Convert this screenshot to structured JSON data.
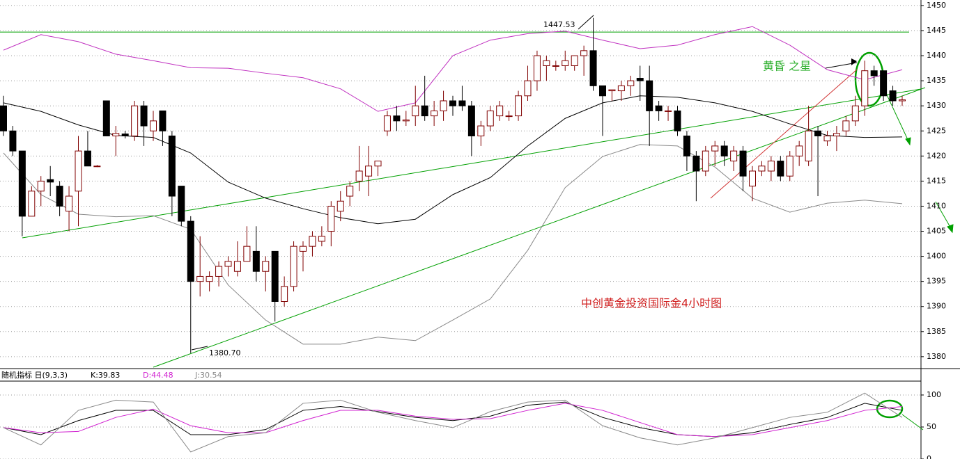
{
  "chart_data": [
    {
      "type": "candlestick",
      "open": [
        1430,
        1425,
        1421,
        1408,
        1413,
        1415.3,
        1414,
        1409,
        1413,
        1421,
        1418,
        1431,
        1424,
        1424.4,
        1424,
        1430,
        1425,
        1429,
        1424,
        1414,
        1407,
        1395,
        1395,
        1396,
        1398,
        1397,
        1399,
        1401,
        1397,
        1401,
        1391,
        1394,
        1401,
        1402,
        1403,
        1405,
        1409,
        1412,
        1415,
        1416,
        1418,
        1425,
        1428,
        1427,
        1428,
        1430,
        1428,
        1429,
        1431,
        1431,
        1430,
        1424,
        1426,
        1428,
        1428,
        1428,
        1432,
        1435,
        1438,
        1438,
        1438,
        1438,
        1440,
        1441,
        1434,
        1433,
        1433,
        1434,
        1435.5,
        1435,
        1430,
        1429,
        1429,
        1424,
        1420,
        1417,
        1421,
        1422,
        1419,
        1421,
        1414,
        1417,
        1417,
        1419,
        1416,
        1420,
        1419,
        1425,
        1423,
        1424,
        1425,
        1427,
        1430,
        1437,
        1437,
        1433,
        1431
      ],
      "high": [
        1432,
        1426,
        1421,
        1414,
        1416,
        1418,
        1415,
        1414,
        1424,
        1425,
        1418.2,
        1431,
        1426,
        1425,
        1431,
        1431,
        1429,
        1429,
        1425,
        1414,
        1408,
        1404,
        1397,
        1399,
        1400,
        1403,
        1406,
        1406,
        1400,
        1401,
        1396,
        1403,
        1403,
        1405,
        1406,
        1411,
        1413,
        1415,
        1422,
        1422,
        1419,
        1429,
        1430,
        1429,
        1434,
        1436,
        1431,
        1433,
        1432,
        1434,
        1431,
        1427,
        1430,
        1431,
        1429,
        1433,
        1438,
        1441,
        1440,
        1439,
        1441,
        1440,
        1442,
        1447.53,
        1434,
        1433,
        1435,
        1436,
        1438,
        1438,
        1431,
        1430,
        1430,
        1425,
        1421,
        1422,
        1423,
        1423,
        1422,
        1422,
        1418,
        1419,
        1420,
        1420,
        1421,
        1423,
        1430,
        1426,
        1425,
        1426,
        1428,
        1432,
        1439,
        1438,
        1437,
        1434,
        1432
      ],
      "low": [
        1424,
        1420,
        1404,
        1408,
        1410,
        1412,
        1408,
        1405,
        1406,
        1418,
        1417.8,
        1424,
        1420,
        1423.5,
        1423,
        1422,
        1423,
        1422,
        1408,
        1406,
        1380.7,
        1392,
        1393,
        1394,
        1396,
        1396,
        1399,
        1395,
        1393,
        1387,
        1390,
        1393,
        1397,
        1400,
        1402,
        1402,
        1407,
        1410,
        1413,
        1412,
        1416,
        1424,
        1425,
        1426,
        1426,
        1427,
        1426,
        1427,
        1428,
        1429,
        1420,
        1422,
        1425,
        1427,
        1427,
        1427,
        1431,
        1433,
        1435,
        1437,
        1437,
        1437,
        1436,
        1433,
        1424,
        1431,
        1431,
        1432,
        1431,
        1422,
        1427,
        1427,
        1424,
        1417,
        1411,
        1416,
        1418,
        1418,
        1417,
        1413,
        1411,
        1416,
        1415,
        1415,
        1415,
        1418,
        1418,
        1412,
        1422,
        1421,
        1424,
        1426,
        1428,
        1434,
        1431,
        1430,
        1430
      ],
      "close": [
        1425,
        1421,
        1408,
        1413,
        1415,
        1414.8,
        1410,
        1412,
        1421,
        1418,
        1418,
        1424,
        1424.5,
        1424,
        1430,
        1426,
        1427,
        1425,
        1412,
        1407,
        1395,
        1396,
        1396,
        1398,
        1399,
        1399,
        1402,
        1397,
        1399,
        1391,
        1394,
        1402,
        1402,
        1404,
        1404,
        1410,
        1411,
        1414,
        1417,
        1418,
        1419,
        1428,
        1427,
        1427.2,
        1430,
        1428,
        1429,
        1431,
        1430,
        1430,
        1424,
        1426,
        1429,
        1430,
        1428,
        1432,
        1435,
        1440,
        1439,
        1438,
        1439,
        1440,
        1441,
        1434,
        1432,
        1433.2,
        1434,
        1435,
        1435,
        1429,
        1429,
        1429,
        1425,
        1420,
        1417,
        1421,
        1422,
        1420,
        1421,
        1416,
        1417,
        1418,
        1419,
        1416,
        1420,
        1422,
        1425,
        1424,
        1424,
        1424.5,
        1427,
        1430,
        1437,
        1436,
        1432,
        1431,
        1431.2
      ],
      "up_color": "#800000",
      "down_color": "#000000",
      "bands": [
        {
          "color": "#c030c0",
          "x": [
            0,
            4,
            8,
            12,
            16,
            20,
            24,
            28,
            32,
            36,
            40,
            44,
            48,
            52,
            56,
            60,
            64,
            68,
            72,
            76,
            80,
            84,
            88,
            92,
            96
          ],
          "values": [
            1441.1,
            1444.2,
            1442.8,
            1440.3,
            1439.0,
            1437.6,
            1437.5,
            1436.5,
            1435.6,
            1433.4,
            1428.9,
            1430.6,
            1440.0,
            1443.1,
            1444.4,
            1444.9,
            1443.1,
            1441.4,
            1442.1,
            1444.2,
            1445.8,
            1442.1,
            1437.2,
            1435.2,
            1437.2
          ]
        },
        {
          "color": "#000000",
          "x": [
            0,
            4,
            8,
            12,
            16,
            20,
            24,
            28,
            32,
            36,
            40,
            44,
            48,
            52,
            56,
            60,
            64,
            68,
            72,
            76,
            80,
            84,
            88,
            92,
            96
          ],
          "values": [
            1430.6,
            1428.9,
            1426.2,
            1424.1,
            1423.7,
            1420.6,
            1414.8,
            1411.6,
            1409.5,
            1407.7,
            1406.5,
            1407.4,
            1412.3,
            1415.7,
            1422.0,
            1427.5,
            1430.6,
            1432.0,
            1431.7,
            1430.6,
            1428.9,
            1426.4,
            1424.1,
            1423.7,
            1423.8
          ]
        },
        {
          "color": "#888888",
          "x": [
            0,
            4,
            8,
            12,
            16,
            20,
            24,
            28,
            32,
            36,
            40,
            44,
            48,
            52,
            56,
            60,
            64,
            68,
            72,
            76,
            80,
            84,
            88,
            92,
            96
          ],
          "values": [
            1420.6,
            1412.3,
            1408.4,
            1407.9,
            1408.1,
            1405.4,
            1394.3,
            1387.3,
            1382.5,
            1382.5,
            1383.9,
            1383.2,
            1387.3,
            1391.5,
            1401.2,
            1413.7,
            1419.9,
            1422.3,
            1422.0,
            1417.8,
            1411.6,
            1408.8,
            1410.6,
            1411.2,
            1410.5
          ]
        }
      ],
      "hlines": [
        1444.7
      ],
      "hline_color": "#00a000",
      "ylim": [
        1377.9,
        1451.1
      ],
      "yticks": [
        1380,
        1385,
        1390,
        1395,
        1400,
        1405,
        1410,
        1415,
        1420,
        1425,
        1430,
        1435,
        1440,
        1445,
        1450
      ],
      "grid": true,
      "annotations": [
        "1447.53",
        "1380.70",
        "黄昏 之星",
        "中创黄金投资国际金4小时图"
      ]
    },
    {
      "type": "line",
      "title": "随机指标 日(9,3,3)",
      "x": [
        0,
        4,
        8,
        12,
        16,
        20,
        24,
        28,
        32,
        36,
        40,
        44,
        48,
        52,
        56,
        60,
        64,
        68,
        72,
        76,
        80,
        84,
        88,
        92,
        96
      ],
      "series": [
        {
          "name": "K:39.83",
          "color": "#000000",
          "values": [
            49,
            38,
            60,
            76,
            76,
            38,
            38,
            46,
            76,
            82,
            74,
            65,
            60,
            67,
            84,
            89,
            65,
            49,
            38,
            35,
            41,
            54,
            65,
            87,
            76
          ]
        },
        {
          "name": "D:44.48",
          "color": "#d020d0",
          "values": [
            49,
            41,
            43,
            65,
            78,
            52,
            41,
            41,
            60,
            76,
            76,
            67,
            62,
            63,
            76,
            87,
            76,
            57,
            38,
            35,
            38,
            49,
            60,
            76,
            82
          ]
        },
        {
          "name": "J:30.54",
          "color": "#888888",
          "values": [
            49,
            22,
            76,
            92,
            89,
            11,
            35,
            41,
            87,
            92,
            73,
            60,
            49,
            74,
            89,
            92,
            52,
            33,
            22,
            33,
            49,
            65,
            73,
            103,
            65
          ]
        }
      ],
      "ylim": [
        0,
        121.7
      ],
      "yticks": [
        0,
        50,
        100
      ],
      "grid": true
    }
  ]
}
